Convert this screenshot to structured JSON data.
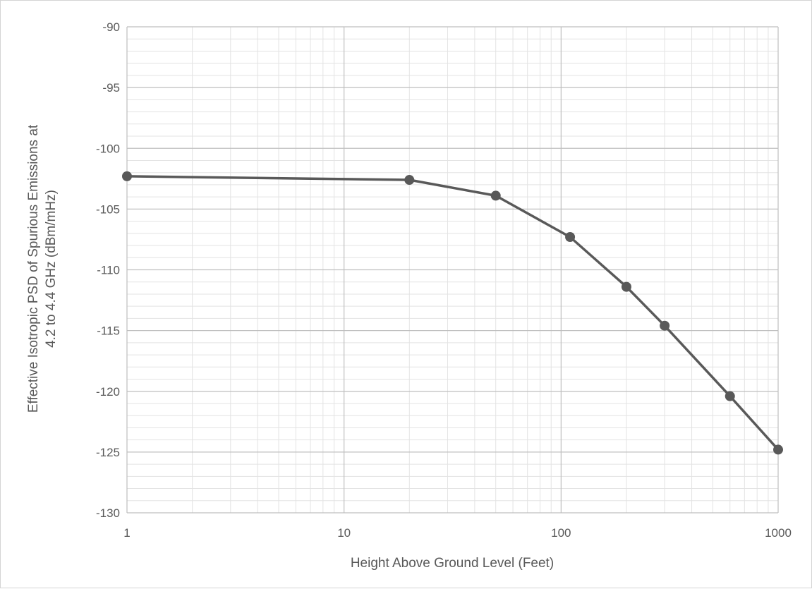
{
  "chart_data": {
    "type": "line",
    "title": "",
    "xlabel": "Height Above Ground Level (Feet)",
    "ylabel_lines": [
      "Effective Isotropic PSD of Spurious Emissions at",
      "4.2 to 4.4 GHz (dBm/mHz)"
    ],
    "x_scale": "log",
    "xlim": [
      1,
      1000
    ],
    "ylim": [
      -130,
      -90
    ],
    "x_ticks": [
      1,
      10,
      100,
      1000
    ],
    "x_tick_labels": [
      "1",
      "10",
      "100",
      "1000"
    ],
    "y_ticks": [
      -90,
      -95,
      -100,
      -105,
      -110,
      -115,
      -120,
      -125,
      -130
    ],
    "y_tick_labels": [
      "-90",
      "-95",
      "-100",
      "-105",
      "-110",
      "-115",
      "-120",
      "-125",
      "-130"
    ],
    "grid": true,
    "legend": "none",
    "series": [
      {
        "color": "#595959",
        "marker": "circle",
        "x": [
          1,
          20,
          50,
          110,
          200,
          300,
          600,
          1000
        ],
        "y": [
          -102.3,
          -102.6,
          -103.9,
          -107.3,
          -111.4,
          -114.6,
          -120.4,
          -124.8
        ]
      }
    ]
  }
}
